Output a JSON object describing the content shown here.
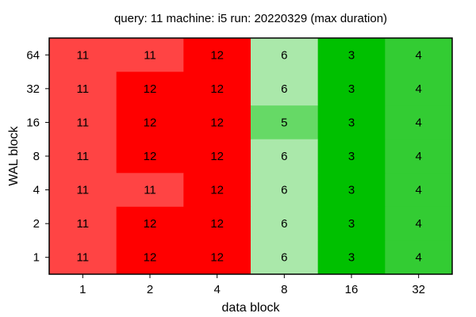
{
  "chart_data": {
    "type": "heatmap",
    "title": "query: 11  machine: i5  run: 20220329  (max duration)",
    "xlabel": "data block",
    "ylabel": "WAL block",
    "x_categories": [
      "1",
      "2",
      "4",
      "8",
      "16",
      "32"
    ],
    "y_categories": [
      "64",
      "32",
      "16",
      "8",
      "4",
      "2",
      "1"
    ],
    "values": [
      [
        11,
        11,
        12,
        6,
        3,
        4
      ],
      [
        11,
        12,
        12,
        6,
        3,
        4
      ],
      [
        11,
        12,
        12,
        5,
        3,
        4
      ],
      [
        11,
        12,
        12,
        6,
        3,
        4
      ],
      [
        11,
        11,
        12,
        6,
        3,
        4
      ],
      [
        11,
        12,
        12,
        6,
        3,
        4
      ],
      [
        11,
        12,
        12,
        6,
        3,
        4
      ]
    ],
    "color_map": {
      "3": "#00c000",
      "4": "#33cc33",
      "5": "#66d966",
      "6": "#aae8aa",
      "11": "#ff4444",
      "12": "#ff0000"
    },
    "grid": false,
    "legend": "none"
  }
}
